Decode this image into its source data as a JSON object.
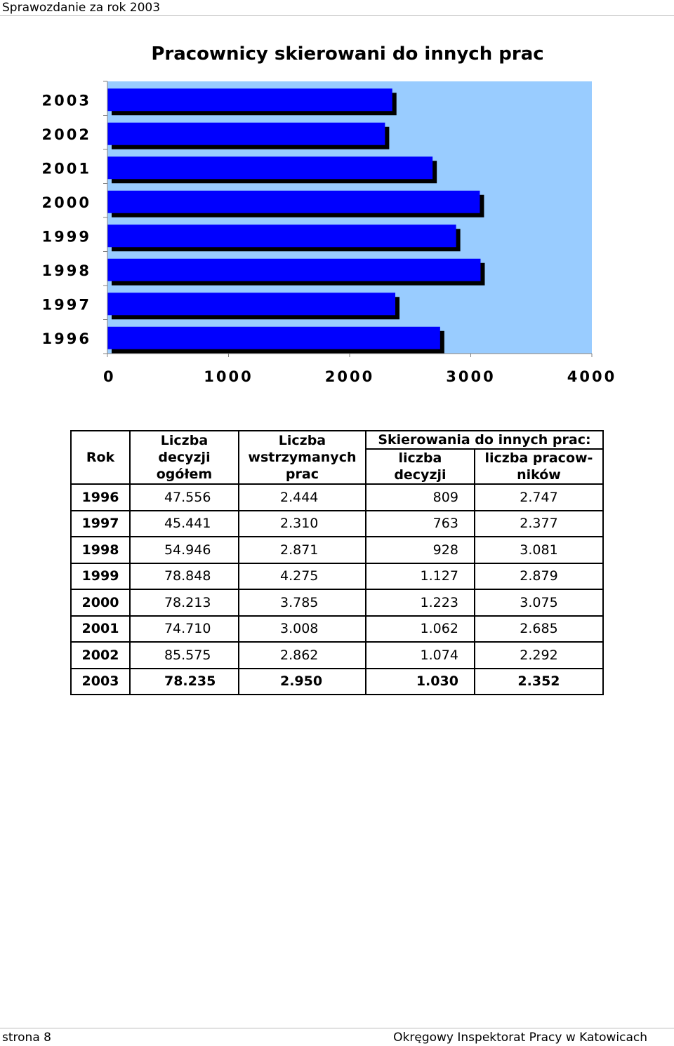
{
  "header": {
    "text": "Sprawozdanie za rok 2003"
  },
  "chart_data": {
    "type": "bar",
    "orientation": "horizontal",
    "title": "Pracownicy skierowani do innych prac",
    "categories": [
      "2003",
      "2002",
      "2001",
      "2000",
      "1999",
      "1998",
      "1997",
      "1996"
    ],
    "values": [
      2352,
      2292,
      2685,
      3075,
      2879,
      3081,
      2377,
      2747
    ],
    "xlim": [
      0,
      4000
    ],
    "xticks": [
      "0",
      "1000",
      "2000",
      "3000",
      "4000"
    ],
    "colors": {
      "bar": "#0000ff",
      "plot_bg": "#99ccff",
      "shadow": "#000000"
    }
  },
  "table": {
    "headers": {
      "rok": "Rok",
      "decyzje": [
        "Liczba decyzji",
        "ogółem"
      ],
      "wstrzymane": [
        "Liczba",
        "wstrzymanych",
        "prac"
      ],
      "skierowania": "Skierowania do innych prac:",
      "liczba_decyzji": "liczba decyzji",
      "liczba_pracownikow": [
        "liczba pracow-",
        "ników"
      ]
    },
    "rows": [
      [
        "1996",
        "47.556",
        "2.444",
        "809",
        "2.747"
      ],
      [
        "1997",
        "45.441",
        "2.310",
        "763",
        "2.377"
      ],
      [
        "1998",
        "54.946",
        "2.871",
        "928",
        "3.081"
      ],
      [
        "1999",
        "78.848",
        "4.275",
        "1.127",
        "2.879"
      ],
      [
        "2000",
        "78.213",
        "3.785",
        "1.223",
        "3.075"
      ],
      [
        "2001",
        "74.710",
        "3.008",
        "1.062",
        "2.685"
      ],
      [
        "2002",
        "85.575",
        "2.862",
        "1.074",
        "2.292"
      ],
      [
        "2003",
        "78.235",
        "2.950",
        "1.030",
        "2.352"
      ]
    ]
  },
  "footer": {
    "left": "strona 8",
    "right": "Okręgowy Inspektorat Pracy w Katowicach"
  }
}
